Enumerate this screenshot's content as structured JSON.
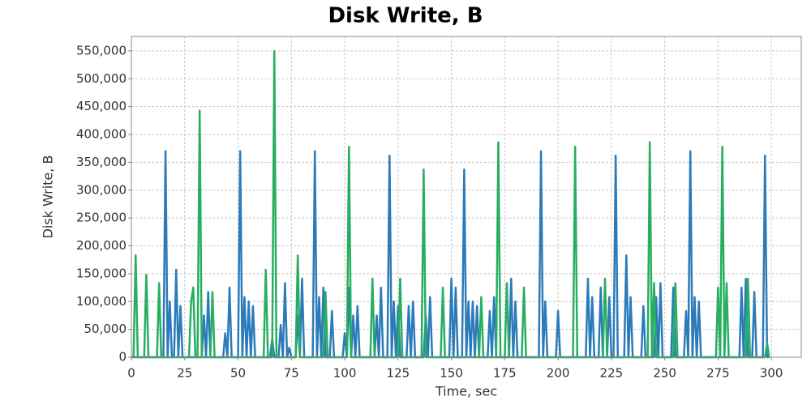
{
  "chart_data": {
    "type": "line",
    "title": "Disk Write, B",
    "x_label": "Time, sec",
    "y_label": "Disk Write, B",
    "x": [
      0,
      1,
      2,
      3,
      4,
      5,
      6,
      7,
      8,
      9,
      10,
      11,
      12,
      13,
      14,
      15,
      16,
      17,
      18,
      19,
      20,
      21,
      22,
      23,
      24,
      25,
      26,
      27,
      28,
      29,
      30,
      31,
      32,
      33,
      34,
      35,
      36,
      37,
      38,
      39,
      40,
      41,
      42,
      43,
      44,
      45,
      46,
      47,
      48,
      49,
      50,
      51,
      52,
      53,
      54,
      55,
      56,
      57,
      58,
      59,
      60,
      61,
      62,
      63,
      64,
      65,
      66,
      67,
      68,
      69,
      70,
      71,
      72,
      73,
      74,
      75,
      76,
      77,
      78,
      79,
      80,
      81,
      82,
      83,
      84,
      85,
      86,
      87,
      88,
      89,
      90,
      91,
      92,
      93,
      94,
      95,
      96,
      97,
      98,
      99,
      100,
      101,
      102,
      103,
      104,
      105,
      106,
      107,
      108,
      109,
      110,
      111,
      112,
      113,
      114,
      115,
      116,
      117,
      118,
      119,
      120,
      121,
      122,
      123,
      124,
      125,
      126,
      127,
      128,
      129,
      130,
      131,
      132,
      133,
      134,
      135,
      136,
      137,
      138,
      139,
      140,
      141,
      142,
      143,
      144,
      145,
      146,
      147,
      148,
      149,
      150,
      151,
      152,
      153,
      154,
      155,
      156,
      157,
      158,
      159,
      160,
      161,
      162,
      163,
      164,
      165,
      166,
      167,
      168,
      169,
      170,
      171,
      172,
      173,
      174,
      175,
      176,
      177,
      178,
      179,
      180,
      181,
      182,
      183,
      184,
      185,
      186,
      187,
      188,
      189,
      190,
      191,
      192,
      193,
      194,
      195,
      196,
      197,
      198,
      199,
      200,
      201,
      202,
      203,
      204,
      205,
      206,
      207,
      208,
      209,
      210,
      211,
      212,
      213,
      214,
      215,
      216,
      217,
      218,
      219,
      220,
      221,
      222,
      223,
      224,
      225,
      226,
      227,
      228,
      229,
      230,
      231,
      232,
      233,
      234,
      235,
      236,
      237,
      238,
      239,
      240,
      241,
      242,
      243,
      244,
      245,
      246,
      247,
      248,
      249,
      250,
      251,
      252,
      253,
      254,
      255,
      256,
      257,
      258,
      259,
      260,
      261,
      262,
      263,
      264,
      265,
      266,
      267,
      268,
      269,
      270,
      271,
      272,
      273,
      274,
      275,
      276,
      277,
      278,
      279,
      280,
      281,
      282,
      283,
      284,
      285,
      286,
      287,
      288,
      289,
      290,
      291,
      292,
      293,
      294,
      295,
      296,
      297,
      298,
      299
    ],
    "series": [
      {
        "color": "#2b7bba",
        "values": [
          0,
          0,
          0,
          0,
          0,
          0,
          0,
          0,
          0,
          0,
          0,
          0,
          0,
          0,
          0,
          0,
          370000,
          0,
          100000,
          0,
          0,
          157000,
          0,
          92000,
          0,
          0,
          0,
          0,
          0,
          0,
          0,
          0,
          0,
          0,
          75000,
          0,
          117000,
          0,
          0,
          0,
          0,
          0,
          0,
          0,
          43000,
          0,
          125000,
          0,
          0,
          0,
          0,
          370000,
          0,
          108000,
          0,
          100000,
          0,
          92000,
          0,
          0,
          0,
          0,
          0,
          0,
          0,
          0,
          33000,
          0,
          0,
          0,
          58000,
          0,
          133000,
          0,
          17000,
          0,
          0,
          0,
          75000,
          0,
          141000,
          0,
          0,
          0,
          0,
          0,
          370000,
          0,
          108000,
          0,
          125000,
          0,
          0,
          0,
          83000,
          0,
          0,
          0,
          0,
          0,
          43000,
          0,
          125000,
          0,
          75000,
          0,
          92000,
          0,
          0,
          0,
          0,
          0,
          0,
          0,
          0,
          75000,
          0,
          125000,
          0,
          0,
          0,
          362000,
          0,
          100000,
          0,
          92000,
          0,
          0,
          0,
          0,
          92000,
          0,
          100000,
          0,
          0,
          0,
          0,
          0,
          75000,
          0,
          108000,
          0,
          0,
          0,
          0,
          0,
          0,
          0,
          0,
          0,
          141000,
          0,
          125000,
          0,
          0,
          0,
          337000,
          0,
          100000,
          0,
          100000,
          0,
          92000,
          0,
          0,
          0,
          0,
          0,
          83000,
          0,
          108000,
          0,
          0,
          0,
          0,
          0,
          0,
          0,
          141000,
          0,
          100000,
          0,
          0,
          0,
          0,
          0,
          0,
          0,
          0,
          0,
          0,
          0,
          370000,
          0,
          100000,
          0,
          0,
          0,
          0,
          0,
          83000,
          0,
          0,
          0,
          0,
          0,
          0,
          0,
          0,
          0,
          0,
          0,
          0,
          0,
          141000,
          0,
          108000,
          0,
          0,
          0,
          125000,
          0,
          0,
          0,
          108000,
          0,
          0,
          362000,
          0,
          0,
          0,
          0,
          183000,
          0,
          108000,
          0,
          0,
          0,
          0,
          0,
          92000,
          0,
          0,
          0,
          0,
          0,
          108000,
          0,
          133000,
          0,
          0,
          0,
          0,
          0,
          125000,
          0,
          0,
          0,
          0,
          0,
          83000,
          0,
          370000,
          0,
          108000,
          0,
          100000,
          0,
          0,
          0,
          0,
          0,
          0,
          0,
          0,
          0,
          0,
          0,
          0,
          0,
          0,
          0,
          0,
          0,
          0,
          0,
          125000,
          0,
          141000,
          0,
          0,
          0,
          117000,
          0,
          0,
          0,
          0,
          362000,
          0,
          0
        ]
      },
      {
        "color": "#27ae60",
        "values": [
          0,
          0,
          183000,
          0,
          0,
          0,
          0,
          148000,
          0,
          0,
          0,
          0,
          0,
          133000,
          0,
          0,
          0,
          0,
          0,
          0,
          0,
          0,
          0,
          0,
          0,
          0,
          0,
          0,
          100000,
          125000,
          0,
          0,
          443000,
          0,
          0,
          0,
          0,
          0,
          117000,
          0,
          0,
          0,
          0,
          0,
          0,
          0,
          0,
          0,
          0,
          0,
          0,
          0,
          0,
          0,
          0,
          0,
          0,
          0,
          0,
          0,
          0,
          0,
          0,
          157000,
          0,
          0,
          0,
          550000,
          0,
          0,
          0,
          0,
          0,
          0,
          0,
          0,
          0,
          0,
          183000,
          0,
          0,
          0,
          0,
          0,
          0,
          0,
          0,
          0,
          0,
          0,
          0,
          117000,
          0,
          0,
          0,
          0,
          0,
          0,
          0,
          0,
          0,
          0,
          378000,
          0,
          0,
          0,
          0,
          0,
          0,
          0,
          0,
          0,
          0,
          141000,
          0,
          0,
          0,
          0,
          0,
          0,
          0,
          0,
          0,
          0,
          0,
          0,
          141000,
          0,
          0,
          0,
          0,
          0,
          0,
          0,
          0,
          0,
          0,
          337000,
          0,
          0,
          0,
          0,
          0,
          0,
          0,
          0,
          125000,
          0,
          0,
          0,
          0,
          0,
          0,
          0,
          0,
          0,
          0,
          0,
          0,
          0,
          0,
          0,
          0,
          0,
          108000,
          0,
          0,
          0,
          0,
          0,
          0,
          0,
          386000,
          0,
          0,
          0,
          133000,
          0,
          0,
          0,
          0,
          0,
          0,
          0,
          125000,
          0,
          0,
          0,
          0,
          0,
          0,
          0,
          0,
          0,
          0,
          0,
          0,
          0,
          0,
          0,
          0,
          0,
          0,
          0,
          0,
          0,
          0,
          0,
          378000,
          0,
          0,
          0,
          0,
          0,
          0,
          0,
          0,
          0,
          0,
          0,
          0,
          0,
          141000,
          0,
          0,
          0,
          0,
          0,
          0,
          0,
          0,
          0,
          0,
          0,
          0,
          0,
          0,
          0,
          0,
          0,
          0,
          0,
          0,
          386000,
          0,
          133000,
          0,
          0,
          0,
          0,
          0,
          0,
          0,
          0,
          0,
          133000,
          0,
          0,
          0,
          0,
          0,
          0,
          0,
          0,
          0,
          0,
          0,
          0,
          0,
          0,
          0,
          0,
          0,
          0,
          0,
          125000,
          0,
          378000,
          0,
          133000,
          0,
          0,
          0,
          0,
          0,
          0,
          0,
          0,
          0,
          141000,
          0,
          0,
          0,
          0,
          0,
          0,
          0,
          0,
          25000,
          0
        ]
      }
    ],
    "xlim": [
      0,
      314
    ],
    "ylim": [
      0,
      576000
    ],
    "xticks": [
      0,
      25,
      50,
      75,
      100,
      125,
      150,
      175,
      200,
      225,
      250,
      275,
      300
    ],
    "yticks": [
      0,
      {
        "value": 50000,
        "label": "50,000"
      },
      {
        "value": 100000,
        "label": "100,000"
      },
      {
        "value": 150000,
        "label": "150,000"
      },
      {
        "value": 200000,
        "label": "200,000"
      },
      {
        "value": 250000,
        "label": "250,000"
      },
      {
        "value": 300000,
        "label": "300,000"
      },
      {
        "value": 350000,
        "label": "350,000"
      },
      {
        "value": 400000,
        "label": "400,000"
      },
      {
        "value": 450000,
        "label": "450,000"
      },
      {
        "value": 500000,
        "label": "500,000"
      },
      {
        "value": 550000,
        "label": "550,000"
      }
    ],
    "grid": true
  }
}
